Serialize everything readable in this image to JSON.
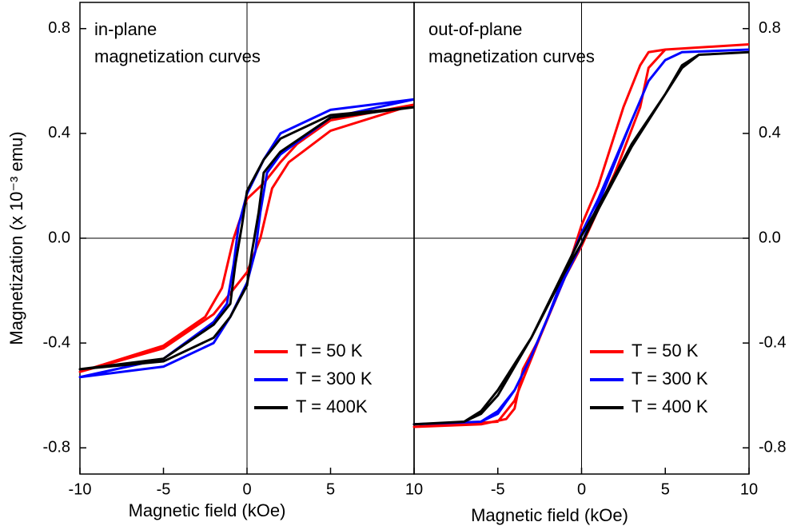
{
  "chart_data": [
    {
      "type": "line",
      "annotation": [
        "in-plane",
        "magnetization curves"
      ],
      "x_label": "Magnetic field (kOe)",
      "y_label": "Magnetization (x 10⁻³ emu)",
      "xlim": [
        -10,
        10
      ],
      "xticks": [
        -10,
        -5,
        0,
        5,
        10
      ],
      "ylim": [
        -0.9,
        0.9
      ],
      "yticks": [
        -0.8,
        -0.4,
        {
          "value": 0,
          "label": "0.0"
        },
        0.4,
        0.8
      ],
      "legend": "lower right",
      "series": [
        {
          "name": "T = 50 K",
          "color": "#ff0000",
          "x": [
            10,
            5,
            3,
            2,
            1,
            0,
            -0.8,
            -1.5,
            -2.5,
            -5,
            -10,
            -5,
            -2,
            -1,
            0,
            0.8,
            1.5,
            2.5,
            5,
            10
          ],
          "values": [
            0.51,
            0.45,
            0.36,
            0.29,
            0.21,
            0.15,
            0,
            -0.19,
            -0.3,
            -0.41,
            -0.51,
            -0.42,
            -0.29,
            -0.21,
            -0.13,
            0,
            0.19,
            0.29,
            0.41,
            0.51
          ]
        },
        {
          "name": "T = 300 K",
          "color": "#0000ff",
          "x": [
            10,
            5,
            2,
            1,
            0,
            -0.5,
            -0.8,
            -1.2,
            -2,
            -5,
            -10,
            -5,
            -2,
            -1,
            0,
            0.5,
            0.8,
            1.2,
            2,
            5,
            10
          ],
          "values": [
            0.53,
            0.49,
            0.4,
            0.3,
            0.17,
            0.05,
            -0.1,
            -0.25,
            -0.32,
            -0.46,
            -0.53,
            -0.49,
            -0.4,
            -0.3,
            -0.17,
            -0.05,
            0.1,
            0.25,
            0.32,
            0.46,
            0.53
          ]
        },
        {
          "name": "T = 400K",
          "color": "#000000",
          "x": [
            10,
            5,
            2,
            1,
            0,
            -0.3,
            -0.7,
            -1,
            -2,
            -5,
            -10,
            -5,
            -2,
            -1,
            0,
            0.3,
            0.7,
            1,
            2,
            5,
            10
          ],
          "values": [
            0.5,
            0.47,
            0.38,
            0.3,
            0.18,
            0.05,
            -0.1,
            -0.25,
            -0.33,
            -0.46,
            -0.5,
            -0.47,
            -0.38,
            -0.3,
            -0.18,
            -0.05,
            0.1,
            0.25,
            0.33,
            0.46,
            0.5
          ]
        }
      ]
    },
    {
      "type": "line",
      "annotation": [
        "out-of-plane",
        "magnetization curves"
      ],
      "x_label": "Magnetic field (kOe)",
      "xlim": [
        -10,
        10
      ],
      "xticks": [
        -5,
        0,
        5,
        10
      ],
      "ylim": [
        -0.9,
        0.9
      ],
      "yticks": [
        -0.8,
        -0.4,
        {
          "value": 0,
          "label": "0.0"
        },
        0.4,
        0.8
      ],
      "legend": "lower right",
      "series": [
        {
          "name": "T = 50 K",
          "color": "#ff0000",
          "x": [
            10,
            5,
            4,
            3.5,
            2.5,
            1,
            0,
            -1,
            -2,
            -3,
            -4,
            -5,
            -10,
            -6,
            -4.5,
            -4,
            -3.5,
            -2.5,
            -1,
            0,
            2,
            3.5,
            4,
            5,
            10
          ],
          "values": [
            0.74,
            0.72,
            0.71,
            0.66,
            0.5,
            0.2,
            0.05,
            -0.15,
            -0.3,
            -0.46,
            -0.62,
            -0.7,
            -0.72,
            -0.71,
            -0.69,
            -0.65,
            -0.5,
            -0.38,
            -0.15,
            -0.03,
            0.25,
            0.5,
            0.65,
            0.72,
            0.74
          ]
        },
        {
          "name": "T = 300 K",
          "color": "#0000ff",
          "x": [
            10,
            6,
            5,
            4,
            3,
            1,
            0,
            -1,
            -2,
            -3,
            -4,
            -5,
            -6,
            -10,
            -6,
            -5,
            -4,
            -3,
            -1,
            0,
            1,
            3,
            4,
            5,
            6,
            10
          ],
          "values": [
            0.72,
            0.71,
            0.68,
            0.6,
            0.45,
            0.15,
            0.02,
            -0.13,
            -0.3,
            -0.45,
            -0.58,
            -0.67,
            -0.7,
            -0.71,
            -0.7,
            -0.66,
            -0.58,
            -0.45,
            -0.15,
            -0.02,
            0.13,
            0.45,
            0.6,
            0.68,
            0.71,
            0.72
          ]
        },
        {
          "name": "T = 400 K",
          "color": "#000000",
          "x": [
            10,
            7,
            6,
            5,
            3,
            1,
            0,
            -1,
            -3,
            -5,
            -6,
            -7,
            -10,
            -7,
            -6,
            -5,
            -3,
            -1,
            0,
            1,
            3,
            5,
            6,
            7,
            10
          ],
          "values": [
            0.71,
            0.7,
            0.66,
            0.55,
            0.36,
            0.12,
            0.01,
            -0.12,
            -0.38,
            -0.58,
            -0.66,
            -0.7,
            -0.71,
            -0.7,
            -0.67,
            -0.6,
            -0.38,
            -0.13,
            -0.02,
            0.11,
            0.35,
            0.55,
            0.65,
            0.7,
            0.71
          ]
        }
      ]
    }
  ]
}
